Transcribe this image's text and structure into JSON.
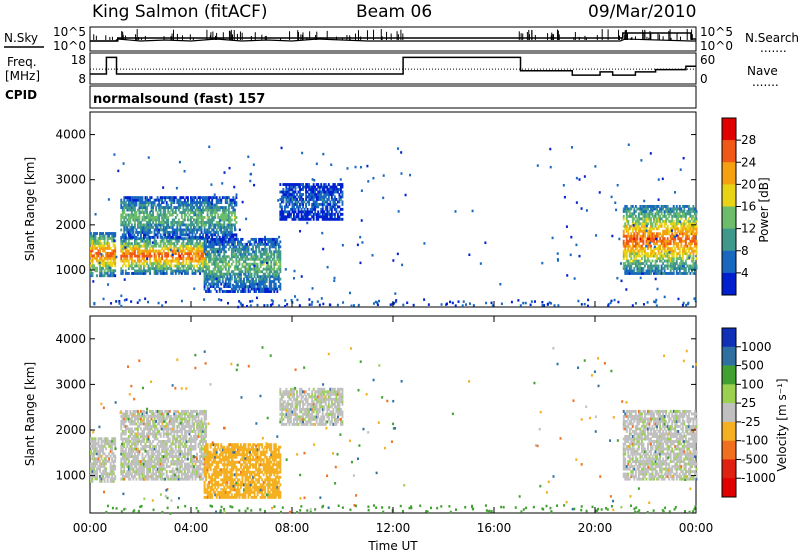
{
  "header": {
    "station": "King Salmon (fitACF)",
    "beam": "Beam 06",
    "date": "09/Mar/2010"
  },
  "left_labels": {
    "nsky": "N.Sky",
    "freq_line1": "Freq.",
    "freq_line2": "[MHz]",
    "cpid": "CPID"
  },
  "right_labels": {
    "nsearch": "N.Search",
    "nave": "Nave",
    "dots": "......."
  },
  "mode_text": "normalsound (fast) 157",
  "chart_data": [
    {
      "type": "line",
      "panel": "noise",
      "yticks_left": [
        "10^5",
        "10^0"
      ],
      "yticks_right": [
        "10^5",
        "10^0"
      ],
      "series": [
        {
          "name": "N.Sky",
          "x": [
            0,
            1,
            1.1,
            2,
            3,
            4,
            5,
            6,
            7,
            8,
            9,
            10,
            11,
            12,
            17.1,
            20.3,
            21,
            21.2,
            23.8,
            24
          ],
          "values": [
            0.5,
            0.5,
            0.6,
            0.5,
            0.55,
            0.5,
            0.6,
            0.5,
            0.55,
            0.5,
            0.6,
            0.55,
            0.5,
            0.5,
            0.5,
            0.5,
            0.5,
            0.6,
            0.5,
            0.5
          ]
        },
        {
          "name": "N.Search",
          "x": [
            0,
            1,
            1.1,
            2,
            5,
            8,
            10,
            12,
            17,
            17.1,
            20.5,
            21,
            21.1,
            23.8,
            24
          ],
          "values": [
            0.5,
            0.5,
            0.65,
            0.65,
            0.65,
            0.65,
            0.65,
            0.65,
            0.65,
            0.65,
            0.65,
            0.65,
            0.9,
            0.6,
            0.6
          ]
        }
      ]
    },
    {
      "type": "line",
      "panel": "frequency",
      "yticks_left": [
        "18",
        "8"
      ],
      "yticks_right": [
        "60",
        "0"
      ],
      "series": [
        {
          "name": "Freq.",
          "x": [
            0,
            0.65,
            0.65,
            1.05,
            1.05,
            12.4,
            12.4,
            17.05,
            17.05,
            19.1,
            19.1,
            20.2,
            20.2,
            20.7,
            20.7,
            21.6,
            21.6,
            22.4,
            22.4,
            23.6,
            23.6,
            24
          ],
          "values": [
            10.5,
            10.5,
            18,
            18,
            10.5,
            10.5,
            18,
            18,
            12,
            12,
            10,
            10,
            11.5,
            11.5,
            10,
            10,
            11.5,
            11.5,
            12.5,
            12.5,
            14,
            14
          ]
        },
        {
          "name": "Nave",
          "x": [
            0,
            24
          ],
          "values": [
            33,
            33
          ]
        }
      ]
    },
    {
      "type": "heatmap",
      "panel": "power",
      "title": "",
      "xlabel": "",
      "ylabel": "Slant Range [km]",
      "xlim": [
        0,
        24
      ],
      "ylim": [
        180,
        4500
      ],
      "yticks": [
        1000,
        2000,
        3000,
        4000
      ],
      "colorbar": {
        "label": "Power [dB]",
        "ticks": [
          4,
          8,
          12,
          16,
          20,
          24,
          28
        ],
        "colors": [
          "#0020d0",
          "#1868c0",
          "#40988c",
          "#6cbc6c",
          "#e8d414",
          "#f4a010",
          "#f05818",
          "#e00000"
        ]
      },
      "echo_regions": [
        {
          "t0": 0.0,
          "t1": 1.0,
          "r0": 850,
          "r1": 1800,
          "peak_db": 26
        },
        {
          "t0": 1.2,
          "t1": 4.6,
          "r0": 900,
          "r1": 1700,
          "peak_db": 26
        },
        {
          "t0": 1.2,
          "t1": 5.8,
          "r0": 1700,
          "r1": 2600,
          "peak_db": 14
        },
        {
          "t0": 4.5,
          "t1": 7.5,
          "r0": 500,
          "r1": 1700,
          "peak_db": 14
        },
        {
          "t0": 7.5,
          "t1": 10.0,
          "r0": 2100,
          "r1": 2900,
          "peak_db": 6
        },
        {
          "t0": 21.1,
          "t1": 24.0,
          "r0": 900,
          "r1": 2400,
          "peak_db": 26
        }
      ]
    },
    {
      "type": "heatmap",
      "panel": "velocity",
      "xlabel": "Time UT",
      "ylabel": "Slant Range [km]",
      "xlim": [
        0,
        24
      ],
      "ylim": [
        180,
        4500
      ],
      "xticks": [
        "00:00",
        "04:00",
        "08:00",
        "12:00",
        "16:00",
        "20:00",
        "00:00"
      ],
      "yticks": [
        1000,
        2000,
        3000,
        4000
      ],
      "colorbar": {
        "label": "Velocity [m s⁻¹]",
        "ticks": [
          1000,
          500,
          100,
          25,
          -25,
          -100,
          -500,
          -1000
        ],
        "colors": [
          "#1030b8",
          "#3070a0",
          "#40a030",
          "#9cd050",
          "#c0c0c0",
          "#f4b020",
          "#f07020",
          "#e02010",
          "#e00000"
        ]
      },
      "echo_regions": [
        {
          "t0": 0.0,
          "t1": 1.0,
          "r0": 850,
          "r1": 1800,
          "v": 0
        },
        {
          "t0": 1.2,
          "t1": 4.6,
          "r0": 900,
          "r1": 2400,
          "v": 0
        },
        {
          "t0": 4.5,
          "t1": 7.5,
          "r0": 500,
          "r1": 1700,
          "v": -60
        },
        {
          "t0": 7.5,
          "t1": 10.0,
          "r0": 2100,
          "r1": 2900,
          "v": 0
        },
        {
          "t0": 21.1,
          "t1": 24.0,
          "r0": 900,
          "r1": 2400,
          "v": 0
        }
      ]
    }
  ]
}
